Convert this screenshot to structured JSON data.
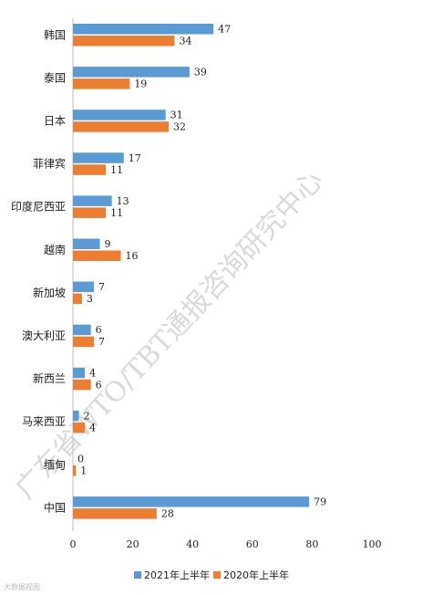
{
  "chart_data": {
    "type": "bar",
    "orientation": "horizontal",
    "categories": [
      "韩国",
      "泰国",
      "日本",
      "菲律宾",
      "印度尼西亚",
      "越南",
      "新加坡",
      "澳大利亚",
      "新西兰",
      "马来西亚",
      "缅甸",
      "中国"
    ],
    "series": [
      {
        "name": "2021年上半年",
        "color": "#5b9bd5",
        "values": [
          47,
          39,
          31,
          17,
          13,
          9,
          7,
          6,
          4,
          2,
          0,
          79
        ]
      },
      {
        "name": "2020年上半年",
        "color": "#ed7d31",
        "values": [
          34,
          19,
          32,
          11,
          11,
          16,
          3,
          7,
          6,
          4,
          1,
          28
        ]
      }
    ],
    "xlim": [
      0,
      100
    ],
    "xticks": [
      0,
      20,
      40,
      60,
      80,
      100
    ],
    "legend_position": "bottom",
    "grid": false
  },
  "watermark": "广东省WTO/TBT通报咨询研究中心",
  "corner_mark": "大数据视图"
}
